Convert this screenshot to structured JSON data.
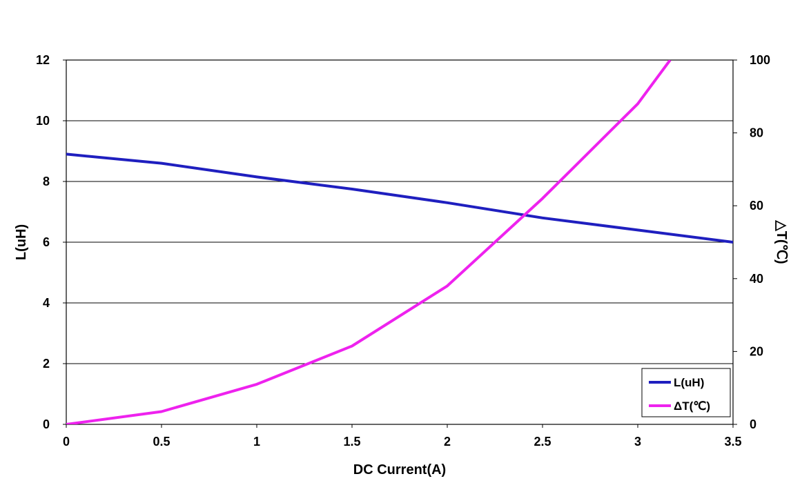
{
  "chart_data": {
    "type": "line",
    "xlabel": "DC Current(A)",
    "ylabel": "L(uH)",
    "y2label": "△T(℃)",
    "xlim": [
      0,
      3.5
    ],
    "ylim": [
      0,
      12
    ],
    "y2lim": [
      0,
      100
    ],
    "x_ticks": [
      "0",
      "0.5",
      "1",
      "1.5",
      "2",
      "2.5",
      "3",
      "3.5"
    ],
    "y_ticks": [
      "0",
      "2",
      "4",
      "6",
      "8",
      "10",
      "12"
    ],
    "y2_ticks": [
      "0",
      "20",
      "40",
      "60",
      "80",
      "100"
    ],
    "grid": "horizontal",
    "legend_position": "bottom-right",
    "series": [
      {
        "name": "L(uH)",
        "axis": "left",
        "color": "#1f1fbf",
        "x": [
          0,
          0.5,
          1,
          1.5,
          2,
          2.5,
          3,
          3.5
        ],
        "y": [
          8.9,
          8.6,
          8.15,
          7.75,
          7.3,
          6.8,
          6.4,
          6.0
        ]
      },
      {
        "name": "ΔT(℃)",
        "axis": "right",
        "color": "#ee22ee",
        "x": [
          0,
          0.5,
          1,
          1.5,
          2,
          2.5,
          3,
          3.17
        ],
        "y": [
          0,
          3.5,
          11,
          21.5,
          38,
          62,
          88,
          100
        ]
      }
    ]
  }
}
